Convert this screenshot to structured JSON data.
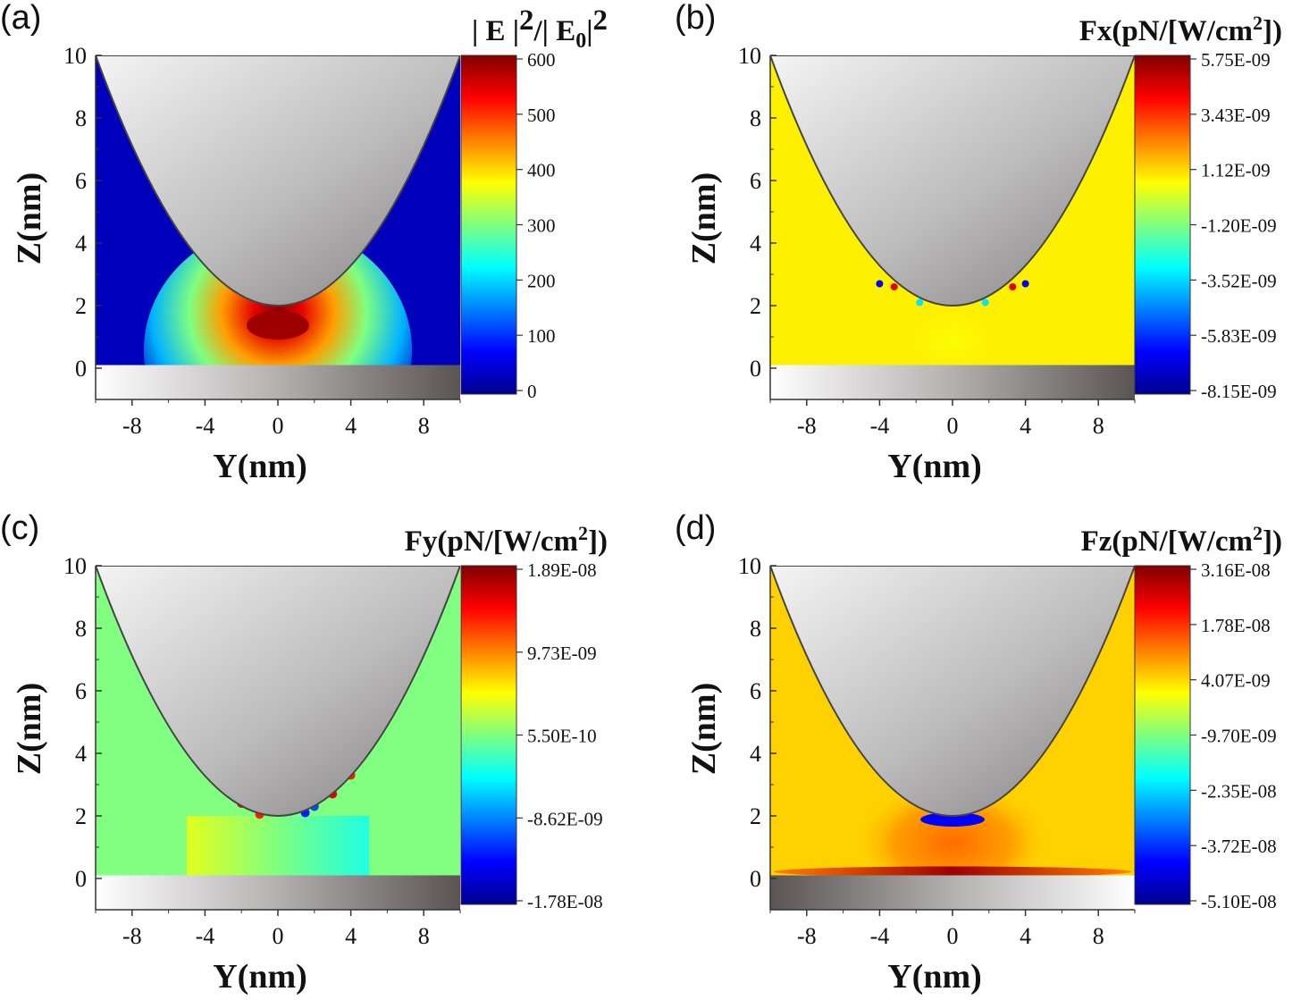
{
  "figure": {
    "colormap": [
      "#00008f",
      "#0000ff",
      "#0080ff",
      "#00ffff",
      "#80ff80",
      "#ffff00",
      "#ff8000",
      "#ff0000",
      "#800000"
    ],
    "tip_gray": "#bdbcbc",
    "substrate_gray": "#5a5454"
  },
  "chart_data": [
    {
      "type": "heatmap",
      "panel": "(a)",
      "quantity": "|E|^2/|E0|^2",
      "colorbar_title": "| E |2/| E0|2",
      "colorbar_ticks": [
        "600",
        "500",
        "400",
        "300",
        "200",
        "100",
        "0"
      ],
      "vmin": 0,
      "vmax": 600,
      "background_level": 0.05,
      "hotspot": {
        "y": 0,
        "z": 1.6,
        "value": 600
      },
      "xlabel": "Y(nm)",
      "ylabel": "Z(nm)",
      "xticks": [
        "-8",
        "-4",
        "0",
        "4",
        "8"
      ],
      "yticks": [
        "10",
        "8",
        "6",
        "4",
        "2",
        "0"
      ],
      "xlim": [
        -10,
        10
      ],
      "ylim": [
        -1,
        10
      ],
      "tip_apex_z": 2,
      "substrate_top_z": 0.1,
      "substrate_gradient": "light-left"
    },
    {
      "type": "heatmap",
      "panel": "(b)",
      "quantity": "Fx",
      "colorbar_title": "Fx(pN/[W/cm2])",
      "colorbar_ticks": [
        "5.75E-09",
        "3.43E-09",
        "1.12E-09",
        "-1.20E-09",
        "-3.52E-09",
        "-5.83E-09",
        "-8.15E-09"
      ],
      "vmin": -8.15e-09,
      "vmax": 5.75e-09,
      "background_level": 0.64,
      "xlabel": "Y(nm)",
      "ylabel": "Z(nm)",
      "xticks": [
        "-8",
        "-4",
        "0",
        "4",
        "8"
      ],
      "yticks": [
        "10",
        "8",
        "6",
        "4",
        "2",
        "0"
      ],
      "xlim": [
        -10,
        10
      ],
      "ylim": [
        -1,
        10
      ],
      "tip_apex_z": 2,
      "substrate_top_z": 0.1,
      "substrate_gradient": "light-left"
    },
    {
      "type": "heatmap",
      "panel": "(c)",
      "quantity": "Fy",
      "colorbar_title": "Fy(pN/[W/cm2])",
      "colorbar_ticks": [
        "1.89E-08",
        "9.73E-09",
        "5.50E-10",
        "-8.62E-09",
        "-1.78E-08"
      ],
      "vmin": -1.78e-08,
      "vmax": 1.89e-08,
      "background_level": 0.5,
      "xlabel": "Y(nm)",
      "ylabel": "Z(nm)",
      "xticks": [
        "-8",
        "-4",
        "0",
        "4",
        "8"
      ],
      "yticks": [
        "10",
        "8",
        "6",
        "4",
        "2",
        "0"
      ],
      "xlim": [
        -10,
        10
      ],
      "ylim": [
        -1,
        10
      ],
      "tip_apex_z": 2,
      "substrate_top_z": 0.1,
      "substrate_gradient": "light-left"
    },
    {
      "type": "heatmap",
      "panel": "(d)",
      "quantity": "Fz",
      "colorbar_title": "Fz(pN/[W/cm2])",
      "colorbar_ticks": [
        "3.16E-08",
        "1.78E-08",
        "4.07E-09",
        "-9.70E-09",
        "-2.35E-08",
        "-3.72E-08",
        "-5.10E-08"
      ],
      "vmin": -5.1e-08,
      "vmax": 3.16e-08,
      "background_level": 0.67,
      "xlabel": "Y(nm)",
      "ylabel": "Z(nm)",
      "xticks": [
        "-8",
        "-4",
        "0",
        "4",
        "8"
      ],
      "yticks": [
        "10",
        "8",
        "6",
        "4",
        "2",
        "0"
      ],
      "xlim": [
        -10,
        10
      ],
      "ylim": [
        -1,
        10
      ],
      "tip_apex_z": 2,
      "substrate_top_z": 0.1,
      "substrate_gradient": "dark-left"
    }
  ]
}
